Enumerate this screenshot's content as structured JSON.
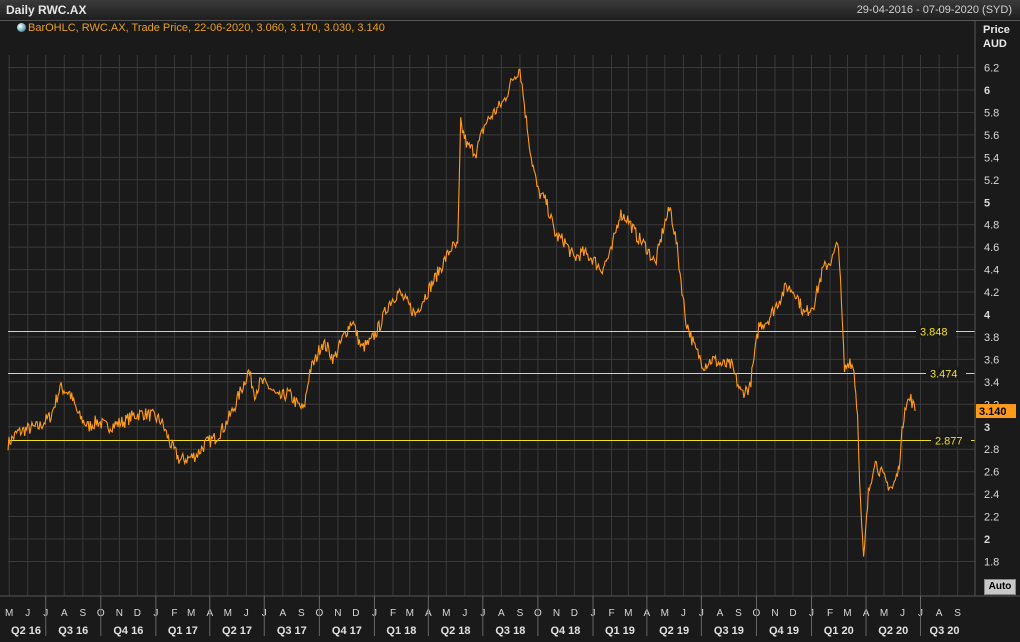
{
  "header": {
    "title": "Daily RWC.AX",
    "date_range": "29-04-2016 - 07-09-2020 (SYD)",
    "legend": "BarOHLC, RWC.AX, Trade Price, 22-06-2020, 3.060, 3.170, 3.030, 3.140",
    "y_axis_title_1": "Price",
    "y_axis_title_2": "AUD",
    "auto_button": "Auto"
  },
  "colors": {
    "background": "#1a1a1a",
    "grid": "#3a3a3a",
    "price_line": "#ff9a1a",
    "horizontal_lines": "#f0e020",
    "last_price_tag": "#ff9a1a"
  },
  "chart_data": {
    "type": "line",
    "title": "Daily RWC.AX",
    "ylabel": "Price AUD",
    "xlabel": "",
    "ylim": [
      1.6,
      6.4
    ],
    "grid": true,
    "y_ticks": [
      "1.8",
      "2",
      "2.2",
      "2.4",
      "2.6",
      "2.8",
      "3",
      "3.2",
      "3.4",
      "3.6",
      "3.8",
      "4",
      "4.2",
      "4.4",
      "4.6",
      "4.8",
      "5",
      "5.2",
      "5.4",
      "5.6",
      "5.8",
      "6",
      "6.2"
    ],
    "month_labels": [
      "M",
      "J",
      "J",
      "A",
      "S",
      "O",
      "N",
      "D",
      "J",
      "F",
      "M",
      "A",
      "M",
      "J",
      "J",
      "A",
      "S",
      "O",
      "N",
      "D",
      "J",
      "F",
      "M",
      "A",
      "M",
      "J",
      "J",
      "A",
      "S",
      "O",
      "N",
      "D",
      "J",
      "F",
      "M",
      "A",
      "M",
      "J",
      "J",
      "A",
      "S",
      "O",
      "N",
      "D",
      "J",
      "F",
      "M",
      "A",
      "M",
      "J",
      "J",
      "A",
      "S"
    ],
    "quarter_labels": [
      "Q2 16",
      "Q3 16",
      "Q4 16",
      "Q1 17",
      "Q2 17",
      "Q3 17",
      "Q4 17",
      "Q1 18",
      "Q2 18",
      "Q3 18",
      "Q4 18",
      "Q1 19",
      "Q2 19",
      "Q3 19",
      "Q4 19",
      "Q1 20",
      "Q2 20",
      "Q3 20"
    ],
    "horizontal_lines": [
      {
        "value": 3.848,
        "label": "3.848"
      },
      {
        "value": 3.474,
        "label": "3.474"
      },
      {
        "value": 2.877,
        "label": "2.877"
      }
    ],
    "last_price": {
      "value": 3.14,
      "label": "3.140"
    },
    "series": [
      {
        "x": [
          "2016-04-29",
          "2016-05-15",
          "2016-06-01",
          "2016-06-20",
          "2016-07-10",
          "2016-07-25",
          "2016-08-10",
          "2016-08-25",
          "2016-09-10",
          "2016-09-25",
          "2016-10-10",
          "2016-10-25",
          "2016-11-10",
          "2016-11-25",
          "2016-12-10",
          "2016-12-25",
          "2017-01-10",
          "2017-01-25",
          "2017-02-10",
          "2017-02-25",
          "2017-03-10",
          "2017-03-25",
          "2017-04-10",
          "2017-04-25",
          "2017-05-10",
          "2017-05-25",
          "2017-06-05",
          "2017-06-15",
          "2017-06-25",
          "2017-07-10",
          "2017-07-25",
          "2017-08-10",
          "2017-08-25",
          "2017-09-05",
          "2017-09-15",
          "2017-09-25",
          "2017-10-05",
          "2017-10-15",
          "2017-10-25",
          "2017-11-10",
          "2017-11-25",
          "2017-12-10",
          "2017-12-25",
          "2018-01-10",
          "2018-01-25",
          "2018-02-10",
          "2018-02-25",
          "2018-03-10",
          "2018-03-25",
          "2018-04-10",
          "2018-04-25",
          "2018-05-10",
          "2018-05-20",
          "2018-05-25",
          "2018-06-05",
          "2018-06-20",
          "2018-07-05",
          "2018-07-20",
          "2018-08-05",
          "2018-08-20",
          "2018-09-01",
          "2018-09-10",
          "2018-09-20",
          "2018-10-01",
          "2018-10-15",
          "2018-10-31",
          "2018-11-15",
          "2018-11-30",
          "2018-12-15",
          "2018-12-31",
          "2019-01-15",
          "2019-01-31",
          "2019-02-15",
          "2019-02-28",
          "2019-03-15",
          "2019-03-31",
          "2019-04-15",
          "2019-04-30",
          "2019-05-10",
          "2019-05-20",
          "2019-06-05",
          "2019-06-20",
          "2019-07-05",
          "2019-07-20",
          "2019-08-05",
          "2019-08-20",
          "2019-09-05",
          "2019-09-20",
          "2019-10-05",
          "2019-10-20",
          "2019-11-05",
          "2019-11-20",
          "2019-12-05",
          "2019-12-20",
          "2020-01-05",
          "2020-01-20",
          "2020-02-05",
          "2020-02-15",
          "2020-02-25",
          "2020-03-05",
          "2020-03-12",
          "2020-03-18",
          "2020-03-23",
          "2020-03-28",
          "2020-04-05",
          "2020-04-15",
          "2020-04-25",
          "2020-05-05",
          "2020-05-15",
          "2020-05-25",
          "2020-06-05",
          "2020-06-15",
          "2020-06-22"
        ],
        "values": [
          2.85,
          2.95,
          2.98,
          3.0,
          3.1,
          3.35,
          3.3,
          3.1,
          3.0,
          3.05,
          3.0,
          3.02,
          3.05,
          3.1,
          3.12,
          3.1,
          3.05,
          2.85,
          2.7,
          2.72,
          2.75,
          2.85,
          2.9,
          3.0,
          3.15,
          3.35,
          3.5,
          3.3,
          3.4,
          3.35,
          3.25,
          3.3,
          3.2,
          3.15,
          3.5,
          3.6,
          3.75,
          3.7,
          3.6,
          3.8,
          3.95,
          3.7,
          3.75,
          3.9,
          4.1,
          4.2,
          4.1,
          4.0,
          4.15,
          4.3,
          4.45,
          4.6,
          4.6,
          5.7,
          5.5,
          5.45,
          5.7,
          5.8,
          5.9,
          6.1,
          6.2,
          5.8,
          5.4,
          5.1,
          5.0,
          4.7,
          4.65,
          4.5,
          4.55,
          4.5,
          4.4,
          4.55,
          4.9,
          4.85,
          4.7,
          4.6,
          4.45,
          4.8,
          4.95,
          4.65,
          3.95,
          3.7,
          3.55,
          3.6,
          3.55,
          3.55,
          3.3,
          3.35,
          3.9,
          3.95,
          4.1,
          4.25,
          4.2,
          4.0,
          4.1,
          4.4,
          4.5,
          4.65,
          3.5,
          3.6,
          3.5,
          3.1,
          2.3,
          1.8,
          2.4,
          2.7,
          2.6,
          2.5,
          2.45,
          2.6,
          3.2,
          3.25,
          3.14
        ]
      }
    ]
  }
}
